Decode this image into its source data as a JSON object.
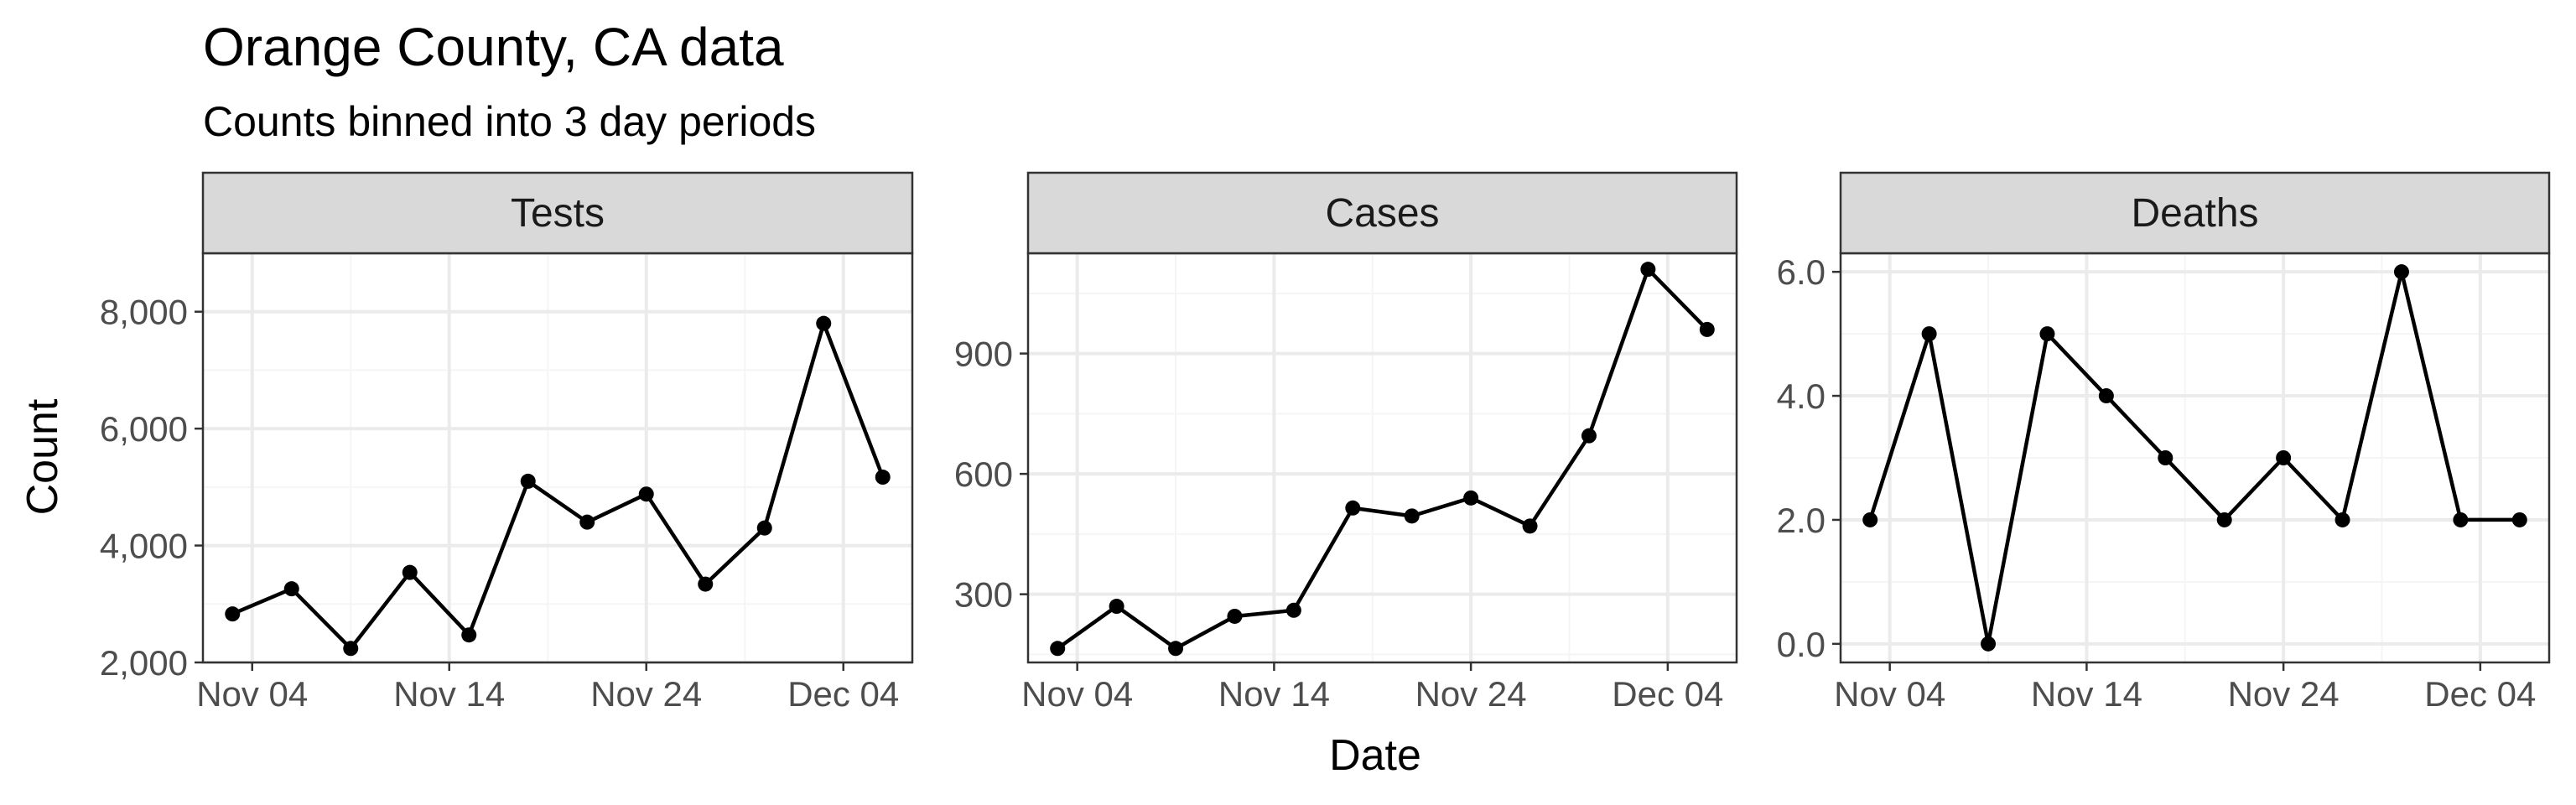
{
  "title": "Orange County, CA data",
  "subtitle": "Counts binned into 3 day periods",
  "x_axis_title": "Date",
  "y_axis_title": "Count",
  "chart_data": [
    {
      "type": "line",
      "panel": "Tests",
      "x": [
        "2020-11-03",
        "2020-11-06",
        "2020-11-09",
        "2020-11-12",
        "2020-11-15",
        "2020-11-18",
        "2020-11-21",
        "2020-11-24",
        "2020-11-27",
        "2020-11-30",
        "2020-12-03",
        "2020-12-06"
      ],
      "y": [
        2830,
        3260,
        2240,
        3540,
        2470,
        5100,
        4400,
        4880,
        3340,
        4300,
        7800,
        5170
      ],
      "ylim": [
        2000,
        9000
      ],
      "yticks": [
        2000,
        4000,
        6000,
        8000
      ],
      "ytick_labels": [
        "2,000",
        "4,000",
        "6,000",
        "8,000"
      ],
      "xticks": [
        "2020-11-04",
        "2020-11-14",
        "2020-11-24",
        "2020-12-04"
      ],
      "xtick_labels": [
        "Nov 04",
        "Nov 14",
        "Nov 24",
        "Dec 04"
      ],
      "grid": true
    },
    {
      "type": "line",
      "panel": "Cases",
      "x": [
        "2020-11-03",
        "2020-11-06",
        "2020-11-09",
        "2020-11-12",
        "2020-11-15",
        "2020-11-18",
        "2020-11-21",
        "2020-11-24",
        "2020-11-27",
        "2020-11-30",
        "2020-12-03",
        "2020-12-06"
      ],
      "y": [
        165,
        270,
        165,
        245,
        260,
        515,
        495,
        540,
        470,
        695,
        1110,
        960
      ],
      "ylim": [
        130,
        1150
      ],
      "yticks": [
        300,
        600,
        900
      ],
      "ytick_labels": [
        "300",
        "600",
        "900"
      ],
      "xticks": [
        "2020-11-04",
        "2020-11-14",
        "2020-11-24",
        "2020-12-04"
      ],
      "xtick_labels": [
        "Nov 04",
        "Nov 14",
        "Nov 24",
        "Dec 04"
      ],
      "grid": true
    },
    {
      "type": "line",
      "panel": "Deaths",
      "x": [
        "2020-11-03",
        "2020-11-06",
        "2020-11-09",
        "2020-11-12",
        "2020-11-15",
        "2020-11-18",
        "2020-11-21",
        "2020-11-24",
        "2020-11-27",
        "2020-11-30",
        "2020-12-03",
        "2020-12-06"
      ],
      "y": [
        2,
        5,
        0,
        5,
        4,
        3,
        2,
        3,
        2,
        6,
        2,
        2
      ],
      "ylim": [
        -0.3,
        6.3
      ],
      "yticks": [
        0,
        2,
        4,
        6
      ],
      "ytick_labels": [
        "0.0",
        "2.0",
        "4.0",
        "6.0"
      ],
      "xticks": [
        "2020-11-04",
        "2020-11-14",
        "2020-11-24",
        "2020-12-04"
      ],
      "xtick_labels": [
        "Nov 04",
        "Nov 14",
        "Nov 24",
        "Dec 04"
      ],
      "grid": true
    }
  ],
  "colors": {
    "line": "#000000",
    "strip_fill": "#d9d9d9",
    "panel_border": "#333333",
    "grid_major": "#ebebeb",
    "grid_minor": "#f5f5f5",
    "tick_text": "#4d4d4d"
  }
}
